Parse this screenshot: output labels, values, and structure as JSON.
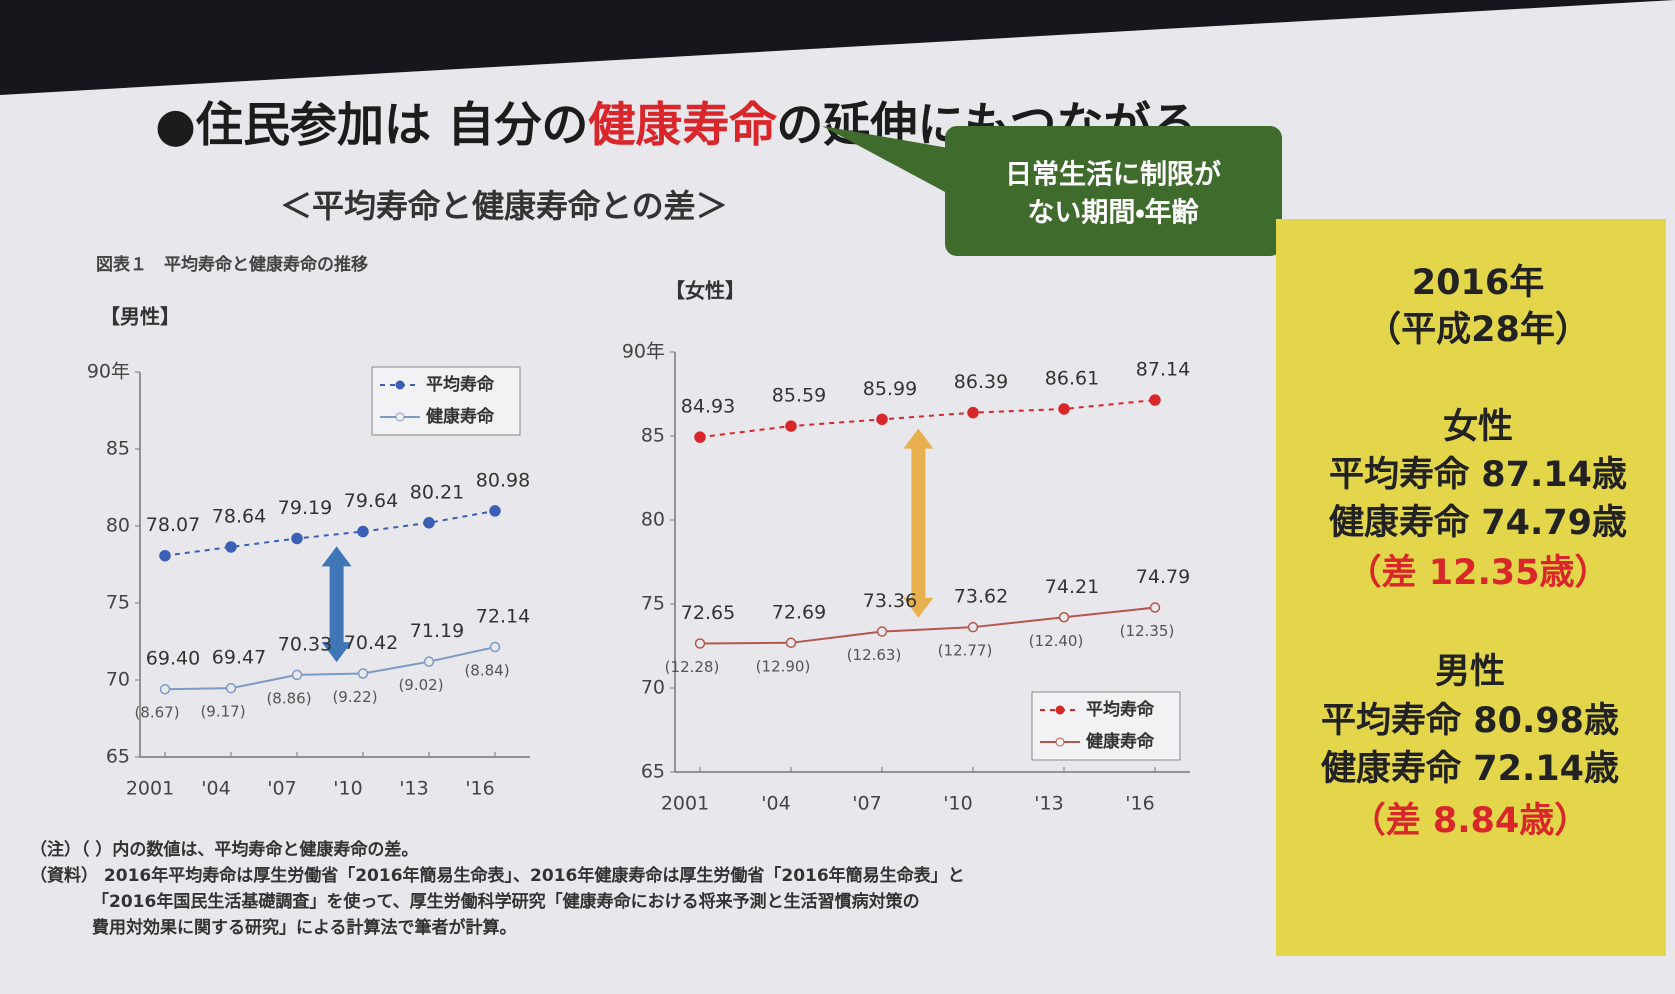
{
  "slide": {
    "title_bullet": "●",
    "title_prefix": "住民参加は 自分の",
    "title_highlight": "健康寿命",
    "title_suffix": "の延伸にもつながる",
    "callout": [
      "日常生活に制限が",
      "ない期間・年齢"
    ],
    "subtitle": "＜平均寿命と健康寿命との差＞",
    "figure_caption": "図表１　平均寿命と健康寿命の推移",
    "summary": {
      "year": "2016年",
      "era": "（平成28年）",
      "female": {
        "heading": "女性",
        "avg": "平均寿命 87.14歳",
        "health": "健康寿命 74.79歳",
        "gap": "（差 12.35歳）"
      },
      "male": {
        "heading": "男性",
        "avg": "平均寿命 80.98歳",
        "health": "健康寿命 72.14歳",
        "gap": "（差 8.84歳）"
      }
    },
    "notes": [
      "（注）（ ）内の数値は、平均寿命と健康寿命の差。",
      "（資料） 2016年平均寿命は厚生労働省「2016年簡易生命表」、2016年健康寿命は厚生労働省「2016年簡易生命表」と",
      "「2016年国民生活基礎調査」を使って、厚生労働科学研究「健康寿命における将来予測と生活習慣病対策の",
      "費用対効果に関する研究」による計算法で筆者が計算。"
    ]
  },
  "chart_data": [
    {
      "type": "line",
      "title": "【男性】",
      "categories": [
        "2001",
        "'04",
        "'07",
        "'10",
        "'13",
        "'16"
      ],
      "series": [
        {
          "name": "平均寿命",
          "color": "#3b5fb5",
          "style": "dashed-filled",
          "values": [
            78.07,
            78.64,
            79.19,
            79.64,
            80.21,
            80.98
          ],
          "value_labels": [
            "78.07",
            "78.64",
            "79.19",
            "79.64",
            "80.21",
            "80.98"
          ]
        },
        {
          "name": "健康寿命",
          "color": "#7d9ac4",
          "style": "solid-hollow",
          "values": [
            69.4,
            69.47,
            70.33,
            70.42,
            71.19,
            72.14
          ],
          "value_labels": [
            "69.40",
            "69.47",
            "70.33",
            "70.42",
            "71.19",
            "72.14"
          ]
        }
      ],
      "gap_labels": [
        "(8.67)",
        "(9.17)",
        "(8.86)",
        "(9.22)",
        "(9.02)",
        "(8.84)"
      ],
      "ylim": [
        65,
        90
      ],
      "yticks": [
        65,
        70,
        75,
        80,
        85,
        {
          "value": 90,
          "label": "90年"
        }
      ],
      "grid": false,
      "legend": "top-right"
    },
    {
      "type": "line",
      "title": "【女性】",
      "categories": [
        "2001",
        "'04",
        "'07",
        "'10",
        "'13",
        "'16"
      ],
      "series": [
        {
          "name": "平均寿命",
          "color": "#d8262b",
          "style": "dashed-filled",
          "values": [
            84.93,
            85.59,
            85.99,
            86.39,
            86.61,
            87.14
          ],
          "value_labels": [
            "84.93",
            "85.59",
            "85.99",
            "86.39",
            "86.61",
            "87.14"
          ]
        },
        {
          "name": "健康寿命",
          "color": "#b4574c",
          "style": "solid-hollow",
          "values": [
            72.65,
            72.69,
            73.36,
            73.62,
            74.21,
            74.79
          ],
          "value_labels": [
            "72.65",
            "72.69",
            "73.36",
            "73.62",
            "74.21",
            "74.79"
          ]
        }
      ],
      "gap_labels": [
        "(12.28)",
        "(12.90)",
        "(12.63)",
        "(12.77)",
        "(12.40)",
        "(12.35)"
      ],
      "ylim": [
        65,
        90
      ],
      "yticks": [
        65,
        70,
        75,
        80,
        85,
        {
          "value": 90,
          "label": "90年"
        }
      ],
      "grid": false,
      "legend": "bottom-right"
    }
  ]
}
